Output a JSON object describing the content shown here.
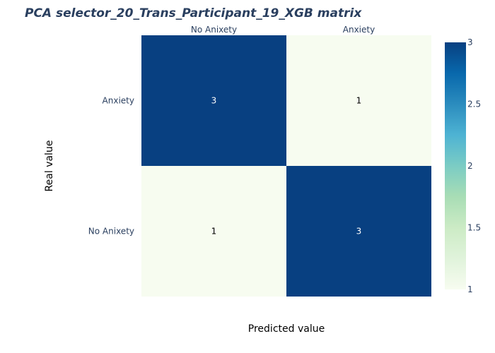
{
  "chart_data": {
    "type": "heatmap",
    "title": "PCA selector_20_Trans_Participant_19_XGB matrix",
    "xlabel": "Predicted value",
    "ylabel": "Real value",
    "x_categories": [
      "No Anixety",
      "Anxiety"
    ],
    "y_categories": [
      "Anxiety",
      "No Anixety"
    ],
    "z": [
      [
        3,
        1
      ],
      [
        1,
        3
      ]
    ],
    "zlim": [
      1,
      3
    ],
    "x_axis_position": "top",
    "grid": false,
    "colorbar": {
      "position": "right",
      "ticks": [
        "1",
        "1.5",
        "2",
        "2.5",
        "3"
      ],
      "tick_values": [
        1,
        1.5,
        2,
        2.5,
        3
      ]
    },
    "colorscale": {
      "name": "GnBu",
      "stops": [
        "#f7fcf0",
        "#e0f3db",
        "#ccebc5",
        "#a8ddb5",
        "#7bccc4",
        "#4eb3d3",
        "#2b8cbe",
        "#0868ac",
        "#084081"
      ]
    }
  }
}
